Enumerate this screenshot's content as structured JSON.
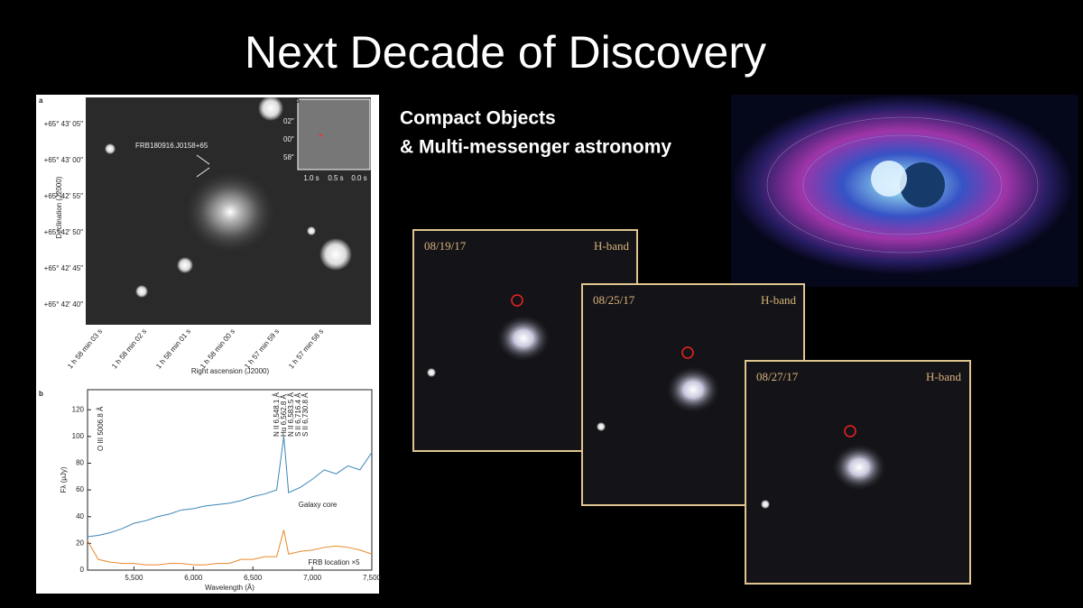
{
  "title": "Next Decade of Discovery",
  "subtitle": [
    "Compact Objects",
    "& Multi-messenger astronomy"
  ],
  "figure": {
    "panel_a": "a",
    "panel_b": "b",
    "source_label": "FRB180916.J0158+65",
    "dec_ticks": [
      "+65° 43′ 05″",
      "+65° 43′ 00″",
      "+65° 42′ 55″",
      "+65° 42′ 50″",
      "+65° 42′ 45″",
      "+65° 42′ 40″"
    ],
    "dec_label": "Declination (J2000)",
    "ra_ticks": [
      "1 h 58 min 03 s",
      "1 h 58 min 02 s",
      "1 h 58 min 01 s",
      "1 h 58 min 00 s",
      "1 h 57 min 59 s",
      "1 h 57 min 58 s"
    ],
    "ra_label": "Right ascension (J2000)",
    "inset_panel": "b",
    "inset_dec_ticks": [
      "02″",
      "00″",
      "58″"
    ],
    "inset_ra_ticks": [
      "1.0 s",
      "0.5 s",
      "0.0 s"
    ]
  },
  "chart_data": {
    "type": "line",
    "xlabel": "Wavelength (Å)",
    "ylabel": "Fλ (μJy)",
    "x": [
      5110,
      5200,
      5300,
      5400,
      5500,
      5600,
      5700,
      5800,
      5900,
      6000,
      6100,
      6200,
      6300,
      6400,
      6500,
      6600,
      6700,
      6760,
      6800,
      6900,
      7000,
      7100,
      7200,
      7300,
      7400,
      7500
    ],
    "series": [
      {
        "name": "Galaxy core",
        "color": "#3a86b6",
        "values": [
          25,
          26,
          28,
          31,
          35,
          37,
          40,
          42,
          45,
          46,
          48,
          49,
          50,
          52,
          55,
          57,
          60,
          100,
          58,
          62,
          68,
          75,
          72,
          78,
          75,
          88
        ]
      },
      {
        "name": "FRB location ×5",
        "color": "#e8892b",
        "values": [
          22,
          8,
          6,
          5,
          5,
          4,
          4,
          5,
          5,
          4,
          4,
          5,
          5,
          8,
          8,
          10,
          10,
          30,
          12,
          14,
          15,
          17,
          18,
          17,
          15,
          12
        ]
      }
    ],
    "annotations": [
      "O III 5006.8 Å",
      "N II 6,548.1 Å",
      "Hα 6,562.8 Å",
      "N II 6,583.5 Å",
      "S II 6,716.4 Å",
      "S II 6,730.8 Å"
    ],
    "xlim": [
      5110,
      7500
    ],
    "ylim": [
      0,
      135
    ],
    "xticks": [
      {
        "value": 5500,
        "label": "5,500"
      },
      {
        "value": 6000,
        "label": "6,000"
      },
      {
        "value": 6500,
        "label": "6,500"
      },
      {
        "value": 7000,
        "label": "7,000"
      },
      {
        "value": 7500,
        "label": "7,500"
      }
    ],
    "yticks": [
      0,
      20,
      40,
      60,
      80,
      100,
      120
    ],
    "grid": false
  },
  "frames": [
    {
      "date": "08/19/17",
      "band": "H-band"
    },
    {
      "date": "08/25/17",
      "band": "H-band"
    },
    {
      "date": "08/27/17",
      "band": "H-band"
    }
  ]
}
